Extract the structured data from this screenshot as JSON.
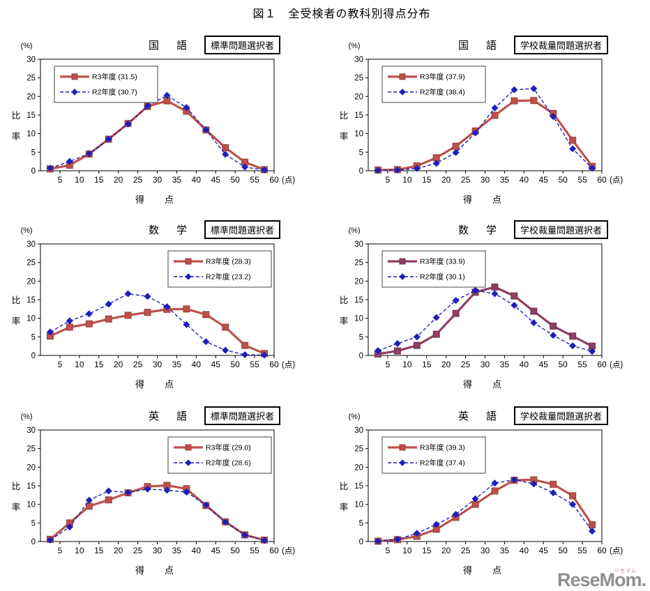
{
  "page_title": "図１　全受検者の教科別得点分布",
  "watermark": {
    "logo": "ReseMom.",
    "ruby": "リセマム"
  },
  "axes": {
    "percent_label": "(%)",
    "y_axis_label": "比率",
    "x_axis_label": "得　点",
    "x_unit_label": "(点)",
    "ylim": [
      0,
      30
    ],
    "xlim": [
      0,
      60
    ],
    "y_ticks": [
      0,
      5,
      10,
      15,
      20,
      25,
      30
    ],
    "x_ticks": [
      5,
      10,
      15,
      20,
      25,
      30,
      35,
      40,
      45,
      50,
      55,
      60
    ],
    "grid": "off"
  },
  "colors": {
    "r3_red": "#bd514a",
    "r3_red_border": "#94403a",
    "r3_purple": "#8e3f63",
    "r3_purple_border": "#6e3050",
    "r2_blue": "#1f1fba",
    "frame": "#000000"
  },
  "chart_data": [
    {
      "type": "line",
      "subject": "国　語",
      "selector_label": "標準問題選択者",
      "legend_pos": "left",
      "x": [
        2.5,
        7.5,
        12.5,
        17.5,
        22.5,
        27.5,
        32.5,
        37.5,
        42.5,
        47.5,
        52.5,
        57.5
      ],
      "series": [
        {
          "name": "R3年度 (31.5)",
          "color": "#bd514a",
          "border": "#94403a",
          "marker": "square",
          "line": "solid",
          "values": [
            0.5,
            1.5,
            4.5,
            8.5,
            12.7,
            17.3,
            18.8,
            16.0,
            11.0,
            6.2,
            2.3,
            0.3
          ]
        },
        {
          "name": "R2年度 (30.7)",
          "color": "#1f1fba",
          "border": "#14148f",
          "marker": "diamond",
          "line": "dashed",
          "values": [
            0.7,
            2.5,
            4.6,
            8.5,
            12.6,
            17.4,
            20.3,
            17.0,
            11.0,
            4.4,
            1.0,
            0.2
          ]
        }
      ]
    },
    {
      "type": "line",
      "subject": "国　語",
      "selector_label": "学校裁量問題選択者",
      "legend_pos": "left",
      "x": [
        2.5,
        7.5,
        12.5,
        17.5,
        22.5,
        27.5,
        32.5,
        37.5,
        42.5,
        47.5,
        52.5,
        57.5
      ],
      "series": [
        {
          "name": "R3年度 (37.9)",
          "color": "#bd514a",
          "border": "#94403a",
          "marker": "square",
          "line": "solid",
          "values": [
            0.2,
            0.3,
            1.3,
            3.5,
            6.6,
            10.7,
            14.9,
            18.8,
            18.9,
            15.4,
            8.2,
            1.2
          ]
        },
        {
          "name": "R2年度 (38.4)",
          "color": "#1f1fba",
          "border": "#14148f",
          "marker": "diamond",
          "line": "dashed",
          "values": [
            0.1,
            0.2,
            0.6,
            2.0,
            4.9,
            10.2,
            16.9,
            21.8,
            22.1,
            14.6,
            5.9,
            0.7
          ]
        }
      ]
    },
    {
      "type": "line",
      "subject": "数　学",
      "selector_label": "標準問題選択者",
      "legend_pos": "right",
      "x": [
        2.5,
        7.5,
        12.5,
        17.5,
        22.5,
        27.5,
        32.5,
        37.5,
        42.5,
        47.5,
        52.5,
        57.5
      ],
      "series": [
        {
          "name": "R3年度 (28.3)",
          "color": "#bd514a",
          "border": "#94403a",
          "marker": "square",
          "line": "solid",
          "values": [
            5.2,
            7.6,
            8.5,
            9.8,
            10.8,
            11.6,
            12.4,
            12.5,
            11.0,
            7.6,
            2.7,
            0.5
          ]
        },
        {
          "name": "R2年度 (23.2)",
          "color": "#1f1fba",
          "border": "#14148f",
          "marker": "diamond",
          "line": "dashed",
          "values": [
            6.3,
            9.3,
            11.2,
            13.8,
            16.6,
            15.9,
            13.1,
            8.3,
            3.7,
            1.4,
            0.2,
            0.1
          ]
        }
      ]
    },
    {
      "type": "line",
      "subject": "数　学",
      "selector_label": "学校裁量問題選択者",
      "legend_pos": "left",
      "x": [
        2.5,
        7.5,
        12.5,
        17.5,
        22.5,
        27.5,
        32.5,
        37.5,
        42.5,
        47.5,
        52.5,
        57.5
      ],
      "series": [
        {
          "name": "R3年度 (33.9)",
          "color": "#8e3f63",
          "border": "#6e3050",
          "marker": "square",
          "line": "solid",
          "values": [
            0.4,
            1.2,
            2.7,
            5.7,
            11.3,
            17.0,
            18.4,
            16.0,
            11.9,
            7.9,
            5.2,
            2.5
          ]
        },
        {
          "name": "R2年度 (30.1)",
          "color": "#1f1fba",
          "border": "#14148f",
          "marker": "diamond",
          "line": "dashed",
          "values": [
            1.3,
            3.2,
            5.0,
            10.2,
            14.8,
            17.5,
            16.6,
            13.5,
            8.8,
            5.4,
            2.6,
            1.1
          ]
        }
      ]
    },
    {
      "type": "line",
      "subject": "英　語",
      "selector_label": "標準問題選択者",
      "legend_pos": "right",
      "x": [
        2.5,
        7.5,
        12.5,
        17.5,
        22.5,
        27.5,
        32.5,
        37.5,
        42.5,
        47.5,
        52.5,
        57.5
      ],
      "series": [
        {
          "name": "R3年度 (29.0)",
          "color": "#bd514a",
          "border": "#94403a",
          "marker": "square",
          "line": "solid",
          "values": [
            0.6,
            5.0,
            9.5,
            11.2,
            13.1,
            14.8,
            15.1,
            14.2,
            9.7,
            5.3,
            1.8,
            0.4
          ]
        },
        {
          "name": "R2年度 (28.6)",
          "color": "#1f1fba",
          "border": "#14148f",
          "marker": "diamond",
          "line": "dashed",
          "values": [
            0.4,
            3.9,
            11.1,
            13.6,
            13.2,
            14.1,
            13.8,
            13.3,
            9.8,
            5.2,
            1.7,
            0.3
          ]
        }
      ]
    },
    {
      "type": "line",
      "subject": "英　語",
      "selector_label": "学校裁量問題選択者",
      "legend_pos": "left",
      "x": [
        2.5,
        7.5,
        12.5,
        17.5,
        22.5,
        27.5,
        32.5,
        37.5,
        42.5,
        47.5,
        52.5,
        57.5
      ],
      "series": [
        {
          "name": "R3年度 (39.3)",
          "color": "#bd514a",
          "border": "#94403a",
          "marker": "square",
          "line": "solid",
          "values": [
            0.1,
            0.5,
            1.4,
            3.3,
            6.5,
            10.0,
            13.6,
            16.5,
            16.6,
            15.4,
            12.3,
            4.5
          ]
        },
        {
          "name": "R2年度 (37.4)",
          "color": "#1f1fba",
          "border": "#14148f",
          "marker": "diamond",
          "line": "dashed",
          "values": [
            0.1,
            0.6,
            2.2,
            4.6,
            7.3,
            11.5,
            15.7,
            16.6,
            15.5,
            13.1,
            10.0,
            2.8
          ]
        }
      ]
    }
  ]
}
